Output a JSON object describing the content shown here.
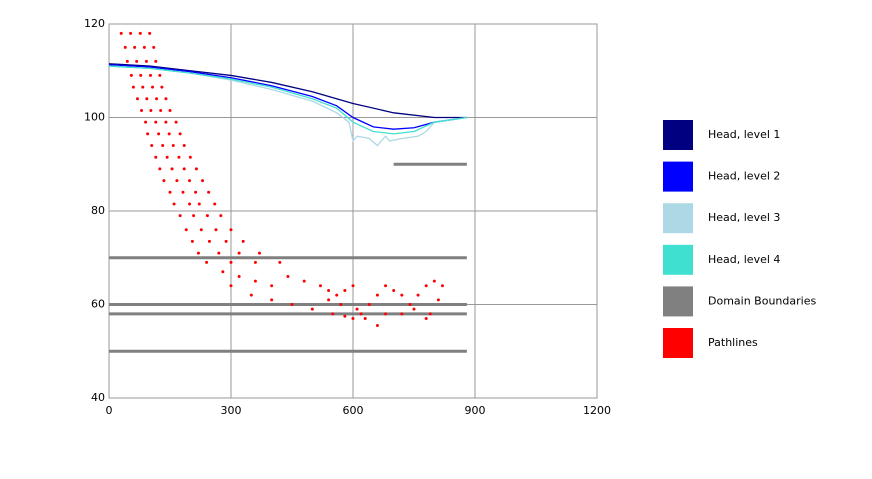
{
  "chart_data": {
    "type": "line",
    "xlim": [
      0,
      1200
    ],
    "xticks": [
      0,
      300,
      600,
      900,
      1200
    ],
    "ylim": [
      40,
      120
    ],
    "yticks": [
      40,
      60,
      80,
      100,
      120
    ],
    "grid": true,
    "legend": "right",
    "series": [
      {
        "name": "Head, level 1",
        "color": "#000080",
        "style": "line",
        "x": [
          0,
          100,
          200,
          300,
          400,
          500,
          600,
          700,
          800,
          880
        ],
        "values": [
          111.5,
          111,
          110,
          109,
          107.5,
          105.5,
          103,
          101,
          100,
          100
        ]
      },
      {
        "name": "Head, level 2",
        "color": "#0000ff",
        "style": "line",
        "x": [
          0,
          100,
          200,
          300,
          400,
          500,
          560,
          600,
          650,
          700,
          750,
          800,
          880
        ],
        "values": [
          111.3,
          110.8,
          109.8,
          108.5,
          106.8,
          104.5,
          102.5,
          100,
          98,
          97.5,
          97.8,
          99,
          100
        ]
      },
      {
        "name": "Head, level 3",
        "color": "#add8e6",
        "style": "line",
        "x": [
          0,
          100,
          200,
          300,
          400,
          500,
          560,
          590,
          600,
          610,
          640,
          660,
          680,
          690,
          720,
          760,
          780,
          800,
          880
        ],
        "values": [
          111,
          110.5,
          109.5,
          108,
          106,
          103.5,
          101,
          99,
          95,
          96,
          95.5,
          94,
          96,
          95,
          95.5,
          96,
          97,
          99,
          100
        ]
      },
      {
        "name": "Head, level 4",
        "color": "#40e0d0",
        "style": "line",
        "x": [
          0,
          100,
          200,
          300,
          400,
          500,
          560,
          600,
          650,
          700,
          750,
          800,
          880
        ],
        "values": [
          111,
          110.5,
          109.5,
          108.2,
          106.5,
          104,
          102,
          99,
          97,
          96.5,
          97,
          99,
          100
        ]
      },
      {
        "name": "Domain Boundaries",
        "color": "#808080",
        "style": "line",
        "x": [
          700,
          880,
          null,
          0,
          880,
          null,
          0,
          880,
          null,
          0,
          880,
          null,
          0,
          880
        ],
        "values": [
          90,
          90,
          null,
          70,
          70,
          null,
          60,
          60,
          null,
          58,
          58,
          null,
          50,
          50
        ]
      },
      {
        "name": "Pathlines",
        "color": "#ff0000",
        "style": "points",
        "x": [
          30,
          53,
          77,
          100,
          40,
          63,
          87,
          110,
          45,
          68,
          92,
          115,
          55,
          78,
          102,
          125,
          60,
          83,
          107,
          130,
          70,
          93,
          117,
          140,
          80,
          103,
          127,
          150,
          90,
          115,
          140,
          165,
          95,
          122,
          148,
          175,
          105,
          132,
          158,
          185,
          115,
          143,
          172,
          200,
          125,
          155,
          185,
          215,
          135,
          167,
          198,
          230,
          150,
          182,
          213,
          245,
          160,
          198,
          222,
          260,
          175,
          208,
          242,
          275,
          190,
          227,
          263,
          300,
          205,
          247,
          288,
          330,
          220,
          270,
          320,
          370,
          240,
          300,
          360,
          420,
          280,
          320,
          360,
          400,
          440,
          480,
          520,
          540,
          300,
          350,
          400,
          450,
          500,
          550,
          580,
          600,
          620,
          540,
          560,
          580,
          600,
          640,
          660,
          680,
          700,
          660,
          680,
          720,
          740,
          760,
          780,
          800,
          820,
          810,
          790,
          780,
          720,
          750,
          630,
          610,
          570
        ],
        "values": [
          118,
          118,
          118,
          118,
          115,
          115,
          115,
          115,
          112,
          112,
          112,
          112,
          109,
          109,
          109,
          109,
          106.5,
          106.5,
          106.5,
          106.5,
          104,
          104,
          104,
          104,
          101.5,
          101.5,
          101.5,
          101.5,
          99,
          99,
          99,
          99,
          96.5,
          96.5,
          96.5,
          96.5,
          94,
          94,
          94,
          94,
          91.5,
          91.5,
          91.5,
          91.5,
          89,
          89,
          89,
          89,
          86.5,
          86.5,
          86.5,
          86.5,
          84,
          84,
          84,
          84,
          81.5,
          81.5,
          81.5,
          81.5,
          79,
          79,
          79,
          79,
          76,
          76,
          76,
          76,
          73.5,
          73.5,
          73.5,
          73.5,
          71,
          71,
          71,
          71,
          69,
          69,
          69,
          69,
          67,
          66,
          65,
          64,
          66,
          65,
          64,
          63,
          64,
          62,
          61,
          60,
          59,
          58,
          57.5,
          57,
          58,
          61,
          62,
          63,
          64,
          60,
          62,
          64,
          63,
          55.5,
          58,
          62,
          60,
          62,
          64,
          65,
          64,
          61,
          58,
          57,
          58,
          59,
          57,
          59,
          60
        ]
      }
    ]
  }
}
